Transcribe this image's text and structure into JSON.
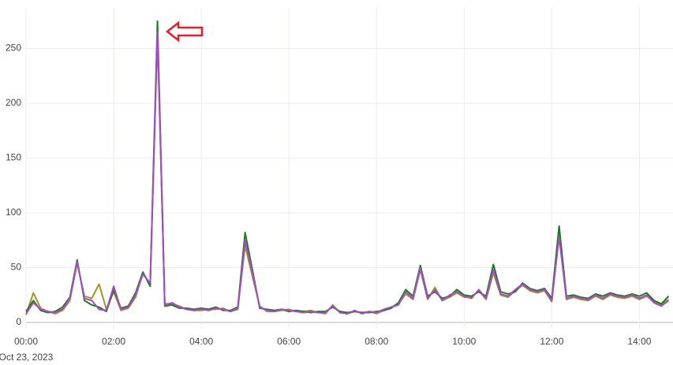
{
  "chart_data": {
    "type": "line",
    "x_date_label": "Oct 23, 2023",
    "x": [
      "2023-10-23 00:00",
      "2023-10-23 00:10",
      "2023-10-23 00:20",
      "2023-10-23 00:30",
      "2023-10-23 00:40",
      "2023-10-23 00:50",
      "2023-10-23 01:00",
      "2023-10-23 01:10",
      "2023-10-23 01:20",
      "2023-10-23 01:30",
      "2023-10-23 01:40",
      "2023-10-23 01:50",
      "2023-10-23 02:00",
      "2023-10-23 02:10",
      "2023-10-23 02:20",
      "2023-10-23 02:30",
      "2023-10-23 02:40",
      "2023-10-23 02:50",
      "2023-10-23 03:00",
      "2023-10-23 03:10",
      "2023-10-23 03:20",
      "2023-10-23 03:30",
      "2023-10-23 03:40",
      "2023-10-23 03:50",
      "2023-10-23 04:00",
      "2023-10-23 04:10",
      "2023-10-23 04:20",
      "2023-10-23 04:30",
      "2023-10-23 04:40",
      "2023-10-23 04:50",
      "2023-10-23 05:00",
      "2023-10-23 05:10",
      "2023-10-23 05:20",
      "2023-10-23 05:30",
      "2023-10-23 05:40",
      "2023-10-23 05:50",
      "2023-10-23 06:00",
      "2023-10-23 06:10",
      "2023-10-23 06:20",
      "2023-10-23 06:30",
      "2023-10-23 06:40",
      "2023-10-23 06:50",
      "2023-10-23 07:00",
      "2023-10-23 07:10",
      "2023-10-23 07:20",
      "2023-10-23 07:30",
      "2023-10-23 07:40",
      "2023-10-23 07:50",
      "2023-10-23 08:00",
      "2023-10-23 08:10",
      "2023-10-23 08:20",
      "2023-10-23 08:30",
      "2023-10-23 08:40",
      "2023-10-23 08:50",
      "2023-10-23 09:00",
      "2023-10-23 09:10",
      "2023-10-23 09:20",
      "2023-10-23 09:30",
      "2023-10-23 09:40",
      "2023-10-23 09:50",
      "2023-10-23 10:00",
      "2023-10-23 10:10",
      "2023-10-23 10:20",
      "2023-10-23 10:30",
      "2023-10-23 10:40",
      "2023-10-23 10:50",
      "2023-10-23 11:00",
      "2023-10-23 11:10",
      "2023-10-23 11:20",
      "2023-10-23 11:30",
      "2023-10-23 11:40",
      "2023-10-23 11:50",
      "2023-10-23 12:00",
      "2023-10-23 12:10",
      "2023-10-23 12:20",
      "2023-10-23 12:30",
      "2023-10-23 12:40",
      "2023-10-23 12:50",
      "2023-10-23 13:00",
      "2023-10-23 13:10",
      "2023-10-23 13:20",
      "2023-10-23 13:30",
      "2023-10-23 13:40",
      "2023-10-23 13:50",
      "2023-10-23 14:00",
      "2023-10-23 14:10",
      "2023-10-23 14:20",
      "2023-10-23 14:30",
      "2023-10-23 14:40"
    ],
    "series": [
      {
        "color": "#9a9a2a",
        "values": [
          7,
          27,
          13,
          10,
          8,
          11,
          20,
          54,
          24,
          22,
          35,
          12,
          28,
          11,
          13,
          23,
          45,
          35,
          262,
          17,
          17,
          15,
          12,
          11,
          11,
          12,
          12,
          13,
          10,
          12,
          70,
          42,
          15,
          10,
          10,
          11,
          12,
          10,
          10,
          11,
          9,
          8,
          16,
          9,
          8,
          10,
          9,
          10,
          8,
          11,
          14,
          17,
          26,
          21,
          48,
          21,
          32,
          20,
          23,
          27,
          23,
          23,
          29,
          21,
          45,
          25,
          23,
          29,
          34,
          29,
          27,
          29,
          19,
          85,
          21,
          23,
          21,
          20,
          24,
          21,
          25,
          23,
          22,
          24,
          21,
          24,
          19,
          16,
          21
        ]
      },
      {
        "color": "#1e7a1e",
        "values": [
          10,
          20,
          11,
          9,
          10,
          14,
          23,
          57,
          20,
          16,
          14,
          10,
          30,
          13,
          15,
          27,
          46,
          33,
          275,
          15,
          16,
          13,
          13,
          12,
          13,
          12,
          14,
          11,
          11,
          14,
          82,
          48,
          13,
          12,
          11,
          12,
          10,
          11,
          10,
          9,
          10,
          10,
          14,
          10,
          9,
          10,
          9,
          9,
          10,
          11,
          13,
          18,
          30,
          24,
          52,
          24,
          28,
          22,
          24,
          30,
          25,
          24,
          28,
          24,
          53,
          28,
          26,
          28,
          36,
          31,
          29,
          31,
          22,
          88,
          24,
          25,
          23,
          22,
          26,
          24,
          27,
          25,
          24,
          26,
          24,
          27,
          20,
          17,
          24
        ]
      },
      {
        "color": "#a64ac9",
        "values": [
          8,
          18,
          12,
          10,
          9,
          12,
          22,
          55,
          22,
          20,
          12,
          11,
          33,
          12,
          14,
          25,
          44,
          36,
          265,
          16,
          18,
          14,
          12,
          11,
          12,
          11,
          13,
          12,
          10,
          13,
          75,
          45,
          14,
          11,
          10,
          12,
          11,
          10,
          9,
          10,
          9,
          9,
          15,
          9,
          8,
          11,
          8,
          10,
          9,
          12,
          14,
          16,
          28,
          22,
          50,
          22,
          30,
          20,
          25,
          28,
          24,
          22,
          30,
          22,
          48,
          26,
          24,
          30,
          35,
          30,
          28,
          30,
          20,
          78,
          22,
          24,
          22,
          21,
          25,
          22,
          26,
          24,
          23,
          25,
          22,
          25,
          18,
          15,
          20
        ]
      }
    ],
    "xlim": [
      "2023-10-23 00:00",
      "2023-10-23 14:46"
    ],
    "xticks": [
      {
        "value": "2023-10-23 00:00",
        "label": "00:00"
      },
      {
        "value": "2023-10-23 02:00",
        "label": "02:00"
      },
      {
        "value": "2023-10-23 04:00",
        "label": "04:00"
      },
      {
        "value": "2023-10-23 06:00",
        "label": "06:00"
      },
      {
        "value": "2023-10-23 08:00",
        "label": "08:00"
      },
      {
        "value": "2023-10-23 10:00",
        "label": "10:00"
      },
      {
        "value": "2023-10-23 12:00",
        "label": "12:00"
      },
      {
        "value": "2023-10-23 14:00",
        "label": "14:00"
      }
    ],
    "ylim": [
      -6,
      287
    ],
    "yticks": [
      0,
      50,
      100,
      150,
      200,
      250
    ],
    "grid": true
  }
}
